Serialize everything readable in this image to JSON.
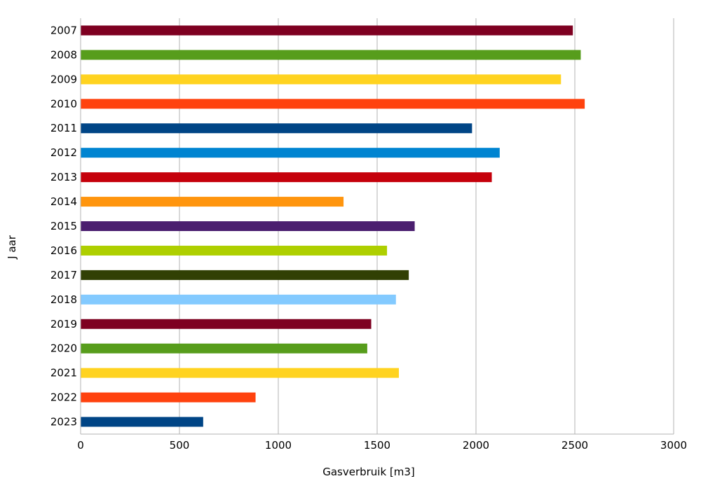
{
  "chart_data": {
    "type": "bar",
    "orientation": "horizontal",
    "title": "",
    "xlabel": "Gasverbruik [m3]",
    "ylabel": "J aar",
    "xlim": [
      0,
      3000
    ],
    "xticks": [
      0,
      500,
      1000,
      1500,
      2000,
      2500,
      3000
    ],
    "grid": true,
    "legend": "none",
    "categories": [
      "2007",
      "2008",
      "2009",
      "2010",
      "2011",
      "2012",
      "2013",
      "2014",
      "2015",
      "2016",
      "2017",
      "2018",
      "2019",
      "2020",
      "2021",
      "2022",
      "2023"
    ],
    "values": [
      2490,
      2530,
      2430,
      2550,
      1980,
      2120,
      2080,
      1330,
      1690,
      1550,
      1660,
      1595,
      1470,
      1450,
      1610,
      885,
      620
    ],
    "colors": [
      "#7e0021",
      "#579d1c",
      "#ffd320",
      "#ff420e",
      "#004586",
      "#0084d1",
      "#c5000b",
      "#ff950e",
      "#4b1f6f",
      "#aecf00",
      "#314004",
      "#83caff",
      "#7e0021",
      "#579d1c",
      "#ffd320",
      "#ff420e",
      "#004586"
    ]
  }
}
